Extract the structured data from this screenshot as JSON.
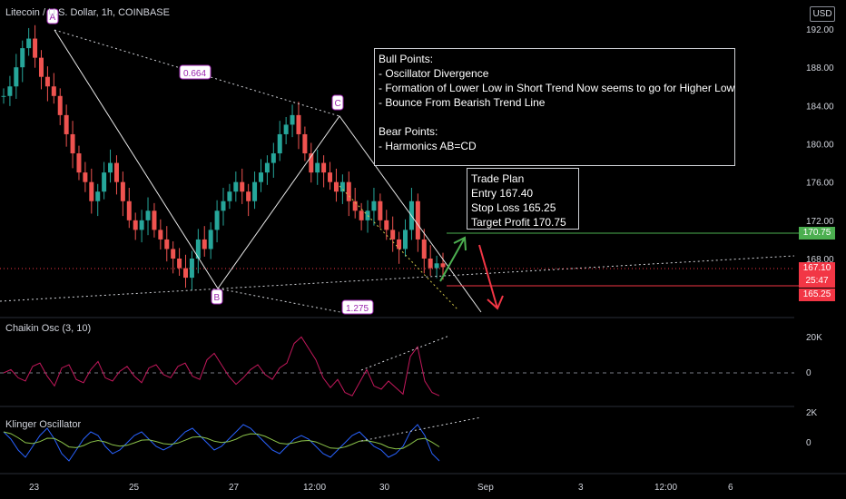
{
  "header": {
    "symbol_line": "Litecoin / U.S. Dollar, 1h, COINBASE",
    "currency_button": "USD"
  },
  "price_axis": {
    "ticks": [
      "192.00",
      "188.00",
      "184.00",
      "180.00",
      "176.00",
      "172.00",
      "168.00"
    ],
    "tags": {
      "target": "170.75",
      "current": "167.10",
      "countdown": "25:47",
      "stop": "165.25"
    }
  },
  "chaikin_axis": [
    "20K",
    "0"
  ],
  "klinger_axis": [
    "2K",
    "0"
  ],
  "time_axis": [
    "23",
    "25",
    "27",
    "12:00",
    "30",
    "Sep",
    "3",
    "12:00",
    "6"
  ],
  "labels": {
    "A": "A",
    "B": "B",
    "C": "C",
    "fib1": "0.664",
    "fib2": "1.275"
  },
  "notes": {
    "bull_bear": "Bull Points:\n- Oscillator Divergence\n- Formation of Lower Low in Short Trend Now seems to go for Higher Low\n- Bounce From Bearish Trend Line\n\nBear Points:\n- Harmonics AB=CD",
    "trade_plan": "Trade Plan\nEntry 167.40\nStop Loss 165.25\nTarget Profit 170.75"
  },
  "indicators": {
    "chaikin": "Chaikin Osc (3, 10)",
    "klinger": "Klinger Oscillator"
  },
  "colors": {
    "up": "#26a69a",
    "down": "#ef5350",
    "target": "#4caf50",
    "stop": "#f23645",
    "chaikin": "#c2185b",
    "klinger1": "#2962ff",
    "klinger2": "#8bc34a"
  },
  "chart_data": {
    "type": "candlestick",
    "title": "Litecoin / U.S. Dollar, 1h, COINBASE",
    "y_range": [
      164,
      193
    ],
    "pattern_points": [
      {
        "label": "A",
        "price": 191.5
      },
      {
        "label": "B",
        "price": 165.6
      },
      {
        "label": "C",
        "price": 182.8
      }
    ],
    "fib_ratios": [
      "0.664",
      "1.275"
    ],
    "levels": {
      "entry": 167.4,
      "stop_loss": 165.25,
      "target": 170.75,
      "current": 167.1
    },
    "close_path": [
      185,
      186,
      188,
      190,
      191,
      189,
      187,
      186,
      185,
      183,
      181,
      179,
      177,
      176,
      174,
      175,
      177,
      178,
      176,
      174,
      172,
      171,
      172,
      173,
      171,
      170,
      169,
      168,
      167,
      166,
      168,
      170,
      169,
      171,
      173,
      174,
      175,
      176,
      175,
      174,
      176,
      177,
      178,
      179,
      181,
      182,
      183,
      181,
      179,
      177,
      178,
      177,
      176,
      175,
      176,
      174,
      173,
      172,
      173,
      174,
      172,
      171,
      170,
      169,
      171,
      174,
      170,
      168,
      167,
      167.5,
      167.1
    ],
    "chaikin_values": [
      0,
      2,
      -3,
      -5,
      4,
      6,
      -2,
      -8,
      3,
      5,
      -4,
      -6,
      2,
      7,
      -3,
      -5,
      1,
      4,
      -2,
      -6,
      3,
      5,
      -1,
      -3,
      4,
      6,
      -2,
      -4,
      8,
      12,
      5,
      -2,
      -7,
      -3,
      2,
      5,
      -1,
      -4,
      3,
      6,
      18,
      22,
      15,
      8,
      -3,
      -9,
      -4,
      -12,
      -14,
      -6,
      2,
      -8,
      -10,
      -5,
      -9,
      -13,
      10,
      16,
      -5,
      -12,
      -14
    ],
    "klinger_values": [
      3,
      1,
      -2,
      -4,
      -1,
      2,
      4,
      1,
      -3,
      -5,
      -2,
      1,
      3,
      2,
      -1,
      -3,
      -2,
      0,
      2,
      3,
      1,
      -1,
      -2,
      -1,
      1,
      3,
      4,
      2,
      0,
      -2,
      -1,
      1,
      3,
      5,
      4,
      2,
      0,
      -2,
      -3,
      -1,
      1,
      2,
      1,
      -1,
      -3,
      -4,
      -2,
      0,
      2,
      3,
      1,
      -1,
      -2,
      -4,
      -3,
      -1,
      3,
      5,
      2,
      -3,
      -5
    ]
  }
}
